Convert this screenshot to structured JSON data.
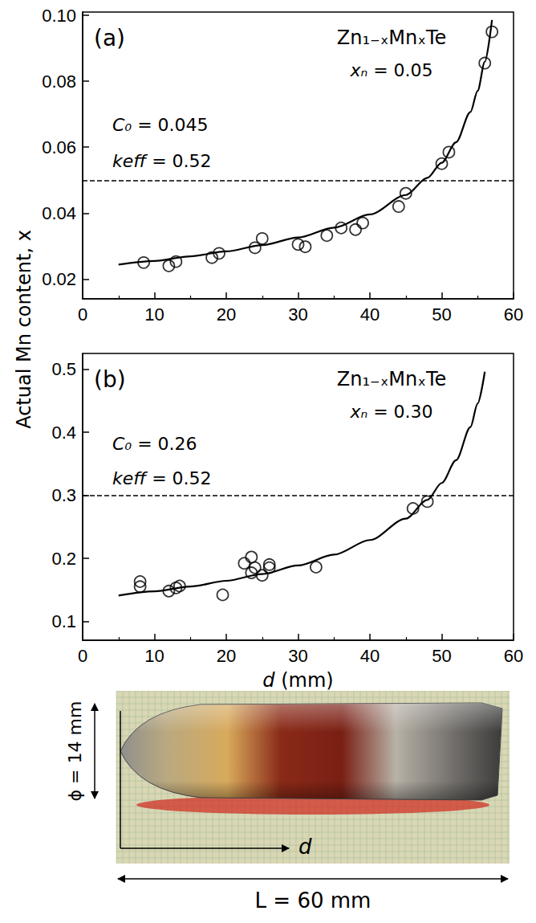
{
  "chart_data": [
    {
      "type": "scatter",
      "panel_label": "(a)",
      "title": "Zn₁₋ₓMnₓTe",
      "annotations": [
        "xₙ = 0.05",
        "C₀ = 0.045",
        "keff = 0.52"
      ],
      "xlim": [
        0,
        60
      ],
      "xticks": [
        0,
        10,
        20,
        30,
        40,
        50,
        60
      ],
      "ylim": [
        0.014,
        0.101
      ],
      "yticks": [
        0.02,
        0.04,
        0.06,
        0.08,
        {
          "value": 0.1,
          "label": "0.10"
        }
      ],
      "grid": false,
      "series": [
        {
          "type": "scatter",
          "marker": "circle",
          "color": "#000000",
          "values": [
            [
              8.5,
              0.025
            ],
            [
              12,
              0.024
            ],
            [
              13,
              0.0253
            ],
            [
              18,
              0.0265
            ],
            [
              19,
              0.0278
            ],
            [
              24,
              0.0295
            ],
            [
              25,
              0.0323
            ],
            [
              30,
              0.0305
            ],
            [
              31,
              0.0298
            ],
            [
              34,
              0.0332
            ],
            [
              36,
              0.0355
            ],
            [
              38,
              0.035
            ],
            [
              39,
              0.037
            ],
            [
              44,
              0.042
            ],
            [
              45,
              0.046
            ],
            [
              50,
              0.055
            ],
            [
              51,
              0.0585
            ],
            [
              56,
              0.0855
            ],
            [
              57,
              0.095
            ]
          ]
        },
        {
          "type": "line",
          "line_style": "solid",
          "color": "#000000",
          "values": [
            [
              5,
              0.0244
            ],
            [
              10,
              0.0255
            ],
            [
              15,
              0.0269
            ],
            [
              20,
              0.0284
            ],
            [
              25,
              0.0303
            ],
            [
              30,
              0.0326
            ],
            [
              35,
              0.0356
            ],
            [
              40,
              0.0396
            ],
            [
              45,
              0.0455
            ],
            [
              48,
              0.0507
            ],
            [
              50,
              0.0553
            ],
            [
              52,
              0.0615
            ],
            [
              54,
              0.0707
            ],
            [
              55,
              0.0771
            ],
            [
              56,
              0.0859
            ],
            [
              57,
              0.0986
            ]
          ]
        }
      ],
      "reference_line": {
        "y": 0.05,
        "line_style": "dashed",
        "color": "#000000"
      }
    },
    {
      "type": "scatter",
      "panel_label": "(b)",
      "title": "Zn₁₋ₓMnₓTe",
      "annotations": [
        "xₙ = 0.30",
        "C₀ = 0.26",
        "keff = 0.52"
      ],
      "xlabel": "d (mm)",
      "xlim": [
        0,
        60
      ],
      "xticks": [
        0,
        10,
        20,
        30,
        40,
        50,
        60
      ],
      "ylim": [
        0.07,
        0.525
      ],
      "yticks": [
        0.1,
        0.2,
        0.3,
        0.4,
        0.5
      ],
      "grid": false,
      "series": [
        {
          "type": "scatter",
          "marker": "circle",
          "color": "#000000",
          "values": [
            [
              8,
              0.163
            ],
            [
              8,
              0.155
            ],
            [
              12,
              0.148
            ],
            [
              13,
              0.153
            ],
            [
              13.5,
              0.156
            ],
            [
              19.5,
              0.142
            ],
            [
              22.5,
              0.192
            ],
            [
              23.5,
              0.202
            ],
            [
              23.5,
              0.177
            ],
            [
              24,
              0.185
            ],
            [
              25,
              0.173
            ],
            [
              26,
              0.19
            ],
            [
              26,
              0.185
            ],
            [
              32.5,
              0.186
            ],
            [
              46,
              0.279
            ],
            [
              48,
              0.29
            ]
          ]
        },
        {
          "type": "line",
          "line_style": "solid",
          "color": "#000000",
          "values": [
            [
              5,
              0.141
            ],
            [
              10,
              0.1476
            ],
            [
              15,
              0.1552
            ],
            [
              20,
              0.1643
            ],
            [
              25,
              0.1751
            ],
            [
              30,
              0.1886
            ],
            [
              35,
              0.2058
            ],
            [
              40,
              0.229
            ],
            [
              45,
              0.263
            ],
            [
              48,
              0.2927
            ],
            [
              50,
              0.3195
            ],
            [
              52,
              0.3556
            ],
            [
              54,
              0.4083
            ],
            [
              55,
              0.4456
            ],
            [
              56,
              0.496
            ]
          ]
        }
      ],
      "reference_line": {
        "y": 0.3,
        "line_style": "dashed",
        "color": "#000000"
      }
    }
  ],
  "ylabel": "Actual Mn content, x",
  "photo": {
    "diameter_label": "ϕ = 14 mm",
    "position_label": "d",
    "length_label": "L = 60 mm"
  }
}
